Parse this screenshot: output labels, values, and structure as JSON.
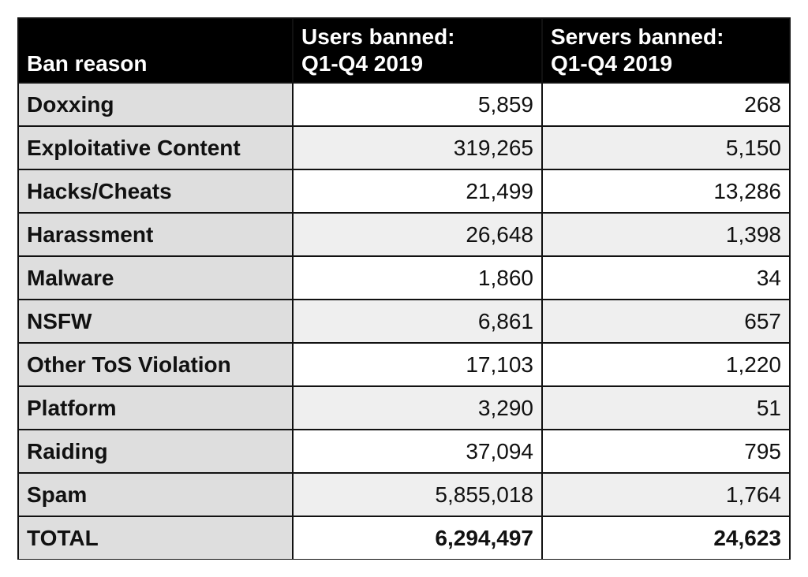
{
  "table": {
    "header": [
      "Ban reason",
      "Users banned:\nQ1-Q4 2019",
      "Servers banned:\nQ1-Q4 2019"
    ],
    "rows": [
      [
        "Doxxing",
        "5,859",
        "268"
      ],
      [
        "Exploitative Content",
        "319,265",
        "5,150"
      ],
      [
        "Hacks/Cheats",
        "21,499",
        "13,286"
      ],
      [
        "Harassment",
        "26,648",
        "1,398"
      ],
      [
        "Malware",
        "1,860",
        "34"
      ],
      [
        "NSFW",
        "6,861",
        "657"
      ],
      [
        "Other ToS Violation",
        "17,103",
        "1,220"
      ],
      [
        "Platform",
        "3,290",
        "51"
      ],
      [
        "Raiding",
        "37,094",
        "795"
      ],
      [
        "Spam",
        "5,855,018",
        "1,764"
      ]
    ],
    "total": [
      "TOTAL",
      "6,294,497",
      "24,623"
    ]
  }
}
